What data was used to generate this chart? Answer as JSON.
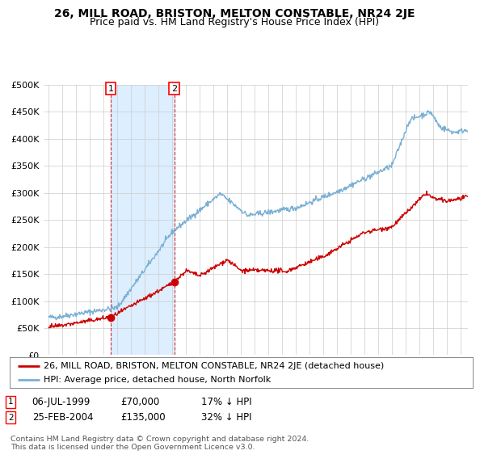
{
  "title": "26, MILL ROAD, BRISTON, MELTON CONSTABLE, NR24 2JE",
  "subtitle": "Price paid vs. HM Land Registry's House Price Index (HPI)",
  "ylim": [
    0,
    500000
  ],
  "yticks": [
    0,
    50000,
    100000,
    150000,
    200000,
    250000,
    300000,
    350000,
    400000,
    450000,
    500000
  ],
  "ytick_labels": [
    "£0",
    "£50K",
    "£100K",
    "£150K",
    "£200K",
    "£250K",
    "£300K",
    "£350K",
    "£400K",
    "£450K",
    "£500K"
  ],
  "marker1_year": 1999.52,
  "marker1_price": 70000,
  "marker2_year": 2004.15,
  "marker2_price": 135000,
  "hpi_color": "#7ab0d4",
  "hpi_shade_color": "#ddeeff",
  "price_color": "#cc0000",
  "legend_price_label": "26, MILL ROAD, BRISTON, MELTON CONSTABLE, NR24 2JE (detached house)",
  "legend_hpi_label": "HPI: Average price, detached house, North Norfolk",
  "annotation1_date": "06-JUL-1999",
  "annotation1_price": "£70,000",
  "annotation1_hpi": "17% ↓ HPI",
  "annotation2_date": "25-FEB-2004",
  "annotation2_price": "£135,000",
  "annotation2_hpi": "32% ↓ HPI",
  "footer": "Contains HM Land Registry data © Crown copyright and database right 2024.\nThis data is licensed under the Open Government Licence v3.0.",
  "background_color": "#ffffff",
  "grid_color": "#cccccc",
  "title_fontsize": 10,
  "subtitle_fontsize": 9,
  "tick_fontsize": 8
}
